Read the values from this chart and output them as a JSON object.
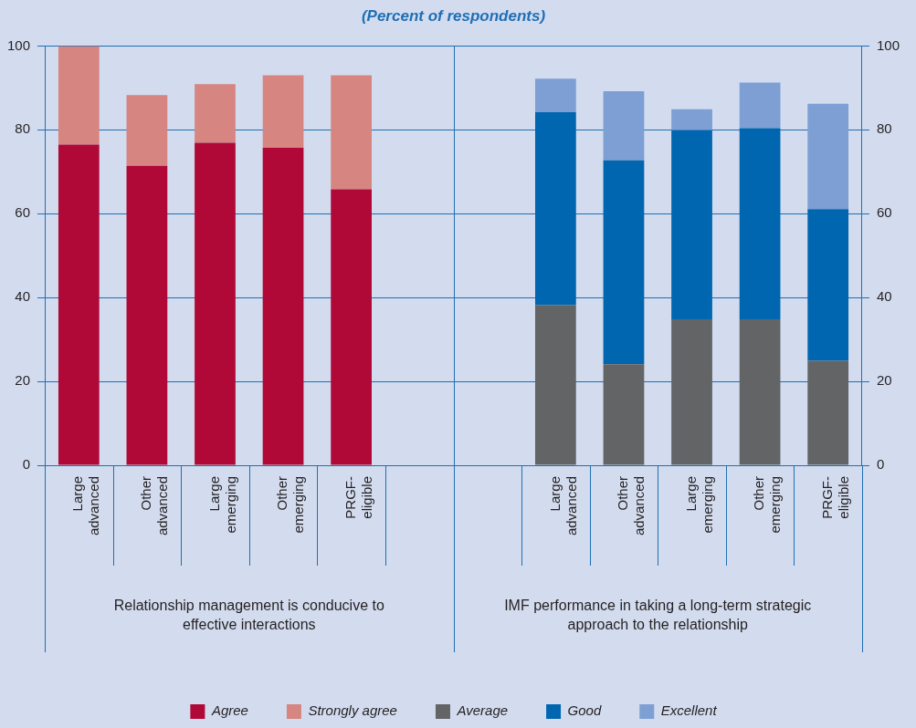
{
  "chart_data": {
    "type": "bar",
    "title": "(Percent of respondents)",
    "stacked": true,
    "categories": [
      "Large advanced",
      "Other advanced",
      "Large emerging",
      "Other emerging",
      "PRGF-eligible",
      null,
      null,
      "Large advanced",
      "Other advanced",
      "Large emerging",
      "Other emerging",
      "PRGF-eligible"
    ],
    "series": [
      {
        "name": "Agree",
        "color": "#b00938",
        "values": [
          76.5,
          71.4,
          76.9,
          75.7,
          65.8,
          null,
          null,
          null,
          null,
          null,
          null,
          null
        ]
      },
      {
        "name": "Strongly agree",
        "color": "#d68580",
        "values": [
          23.5,
          16.9,
          14.0,
          17.3,
          27.2,
          null,
          null,
          null,
          null,
          null,
          null,
          null
        ]
      },
      {
        "name": "Average",
        "color": "#636466",
        "values": [
          null,
          null,
          null,
          null,
          null,
          null,
          null,
          38.2,
          24.1,
          34.8,
          34.8,
          24.9
        ]
      },
      {
        "name": "Good",
        "color": "#0066b0",
        "values": [
          null,
          null,
          null,
          null,
          null,
          null,
          null,
          46.0,
          48.6,
          45.1,
          45.6,
          36.2
        ]
      },
      {
        "name": "Excellent",
        "color": "#7d9fd4",
        "values": [
          null,
          null,
          null,
          null,
          null,
          null,
          null,
          8.0,
          16.5,
          5.0,
          10.9,
          25.1
        ]
      }
    ],
    "ylim": [
      0,
      100
    ],
    "yticks": [
      0,
      20,
      40,
      60,
      80,
      100
    ],
    "y2lim": [
      0,
      100
    ],
    "y2ticks": [
      0,
      20,
      40,
      60,
      80,
      100
    ],
    "grid": "y",
    "legend": "bottom",
    "annotations": [
      "Relationship management is conducive to effective interactions",
      "IMF performance in taking a long-term strategic approach to the relationship"
    ]
  }
}
